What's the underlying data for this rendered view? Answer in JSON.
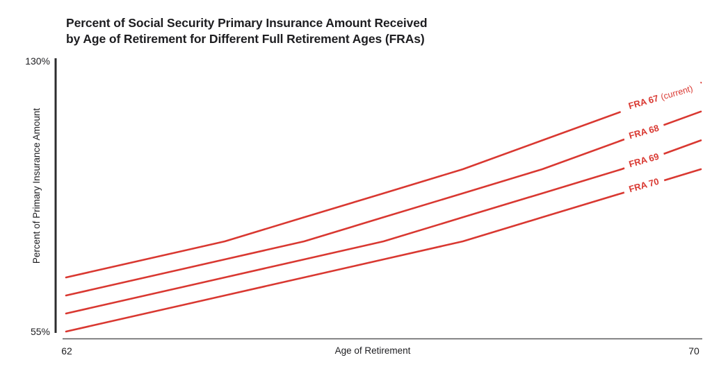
{
  "chart_data": {
    "type": "line",
    "title": "Percent of Social Security Primary Insurance Amount Received by Age of Retirement for Different Full Retirement Ages (FRAs)",
    "title_lines": [
      "Percent of Social Security Primary Insurance Amount Received",
      "by Age of Retirement for Different Full Retirement Ages (FRAs)"
    ],
    "xlabel": "Age of Retirement",
    "ylabel": "Percent of Primary Insurance Amount",
    "x": [
      62,
      63,
      64,
      65,
      66,
      67,
      68,
      69,
      70
    ],
    "xlim": [
      62,
      70
    ],
    "ylim": [
      55,
      130
    ],
    "x_ticks": [
      {
        "value": 62,
        "label": "62"
      },
      {
        "value": 70,
        "label": "70"
      }
    ],
    "y_ticks": [
      {
        "value": 130,
        "label": "130%"
      },
      {
        "value": 55,
        "label": "55%"
      }
    ],
    "grid": false,
    "legend_position": "inline-right-on-lines",
    "line_color": "#d93831",
    "axis_color": "#2c2c2e",
    "baseline_color": "#58585a",
    "series": [
      {
        "name": "FRA 67 (current)",
        "label": "FRA 67",
        "label_suffix": "(current)",
        "values": [
          70,
          75,
          80,
          86.67,
          93.33,
          100,
          108,
          116,
          124
        ]
      },
      {
        "name": "FRA 68",
        "label": "FRA 68",
        "label_suffix": "",
        "values": [
          65,
          70,
          75,
          80,
          86.67,
          93.33,
          100,
          108,
          116
        ]
      },
      {
        "name": "FRA 69",
        "label": "FRA 69",
        "label_suffix": "",
        "values": [
          60,
          65,
          70,
          75,
          80,
          86.67,
          93.33,
          100,
          108
        ]
      },
      {
        "name": "FRA 70",
        "label": "FRA 70",
        "label_suffix": "",
        "values": [
          55,
          60,
          65,
          70,
          75,
          80,
          86.67,
          93.33,
          100
        ]
      }
    ]
  }
}
